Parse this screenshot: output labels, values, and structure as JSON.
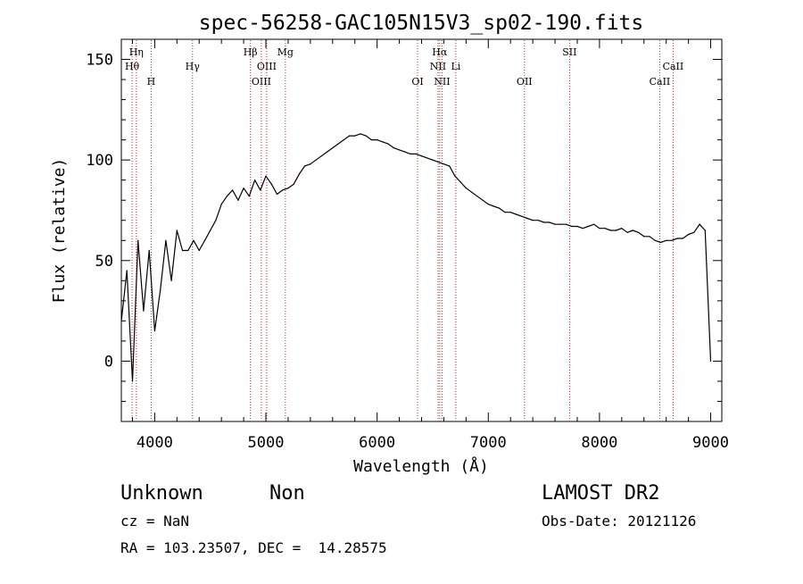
{
  "chart_data": {
    "type": "line",
    "title": "spec-56258-GAC105N15V3_sp02-190.fits",
    "xlabel": "Wavelength (Å)",
    "ylabel": "Flux (relative)",
    "xlim": [
      3700,
      9100
    ],
    "ylim": [
      -30,
      160
    ],
    "x_ticks": [
      4000,
      5000,
      6000,
      7000,
      8000,
      9000
    ],
    "y_ticks": [
      0,
      50,
      100,
      150
    ],
    "grid": false,
    "series": [
      {
        "color": "#000000",
        "x": [
          3700,
          3750,
          3800,
          3850,
          3900,
          3950,
          4000,
          4050,
          4100,
          4150,
          4200,
          4250,
          4300,
          4350,
          4400,
          4450,
          4500,
          4550,
          4600,
          4650,
          4700,
          4750,
          4800,
          4850,
          4900,
          4950,
          5000,
          5050,
          5100,
          5150,
          5200,
          5250,
          5300,
          5350,
          5400,
          5450,
          5500,
          5550,
          5600,
          5650,
          5700,
          5750,
          5800,
          5850,
          5900,
          5950,
          6000,
          6050,
          6100,
          6150,
          6200,
          6250,
          6300,
          6350,
          6400,
          6450,
          6500,
          6550,
          6600,
          6650,
          6700,
          6750,
          6800,
          6850,
          6900,
          6950,
          7000,
          7050,
          7100,
          7150,
          7200,
          7250,
          7300,
          7350,
          7400,
          7450,
          7500,
          7550,
          7600,
          7650,
          7700,
          7750,
          7800,
          7850,
          7900,
          7950,
          8000,
          8050,
          8100,
          8150,
          8200,
          8250,
          8300,
          8350,
          8400,
          8450,
          8500,
          8550,
          8600,
          8650,
          8700,
          8750,
          8800,
          8850,
          8900,
          8950,
          9000
        ],
        "y": [
          20,
          45,
          -10,
          60,
          25,
          55,
          15,
          35,
          60,
          40,
          65,
          55,
          55,
          60,
          55,
          60,
          65,
          70,
          78,
          82,
          85,
          80,
          86,
          82,
          90,
          85,
          92,
          88,
          83,
          85,
          86,
          88,
          93,
          97,
          98,
          100,
          102,
          104,
          106,
          108,
          110,
          112,
          112,
          113,
          112,
          110,
          110,
          109,
          108,
          106,
          105,
          104,
          103,
          103,
          102,
          101,
          100,
          99,
          98,
          97,
          92,
          89,
          86,
          84,
          82,
          80,
          78,
          77,
          76,
          74,
          74,
          73,
          72,
          71,
          70,
          70,
          69,
          69,
          68,
          68,
          68,
          67,
          67,
          66,
          67,
          68,
          66,
          66,
          65,
          65,
          66,
          64,
          65,
          64,
          62,
          62,
          60,
          59,
          60,
          60,
          61,
          61,
          63,
          64,
          68,
          65,
          0
        ]
      }
    ],
    "spectral_lines": [
      {
        "label": "Hη",
        "wavelength": 3835,
        "row": 1
      },
      {
        "label": "Hθ",
        "wavelength": 3797,
        "row": 2
      },
      {
        "label": "H",
        "wavelength": 3968,
        "row": 3
      },
      {
        "label": "Hγ",
        "wavelength": 4340,
        "row": 2
      },
      {
        "label": "Hβ",
        "wavelength": 4861,
        "row": 1
      },
      {
        "label": "OIII",
        "wavelength": 5007,
        "row": 2
      },
      {
        "label": "OIII",
        "wavelength": 4959,
        "row": 3
      },
      {
        "label": "Mg",
        "wavelength": 5175,
        "row": 1
      },
      {
        "label": "OI",
        "wavelength": 6364,
        "row": 3
      },
      {
        "label": "Hα",
        "wavelength": 6563,
        "row": 1
      },
      {
        "label": "NII",
        "wavelength": 6548,
        "row": 2
      },
      {
        "label": "NII",
        "wavelength": 6584,
        "row": 3
      },
      {
        "label": "Li",
        "wavelength": 6708,
        "row": 2
      },
      {
        "label": "OII",
        "wavelength": 7325,
        "row": 3
      },
      {
        "label": "SII",
        "wavelength": 7731,
        "row": 1
      },
      {
        "label": "CaII",
        "wavelength": 8662,
        "row": 2
      },
      {
        "label": "CaII",
        "wavelength": 8542,
        "row": 3
      }
    ]
  },
  "footer": {
    "object_class": "Unknown",
    "object_subclass": "Non",
    "cz": "cz = NaN",
    "coords": "RA = 103.23507, DEC =  14.28575",
    "survey": "LAMOST DR2",
    "obs_date": "Obs-Date: 20121126"
  }
}
